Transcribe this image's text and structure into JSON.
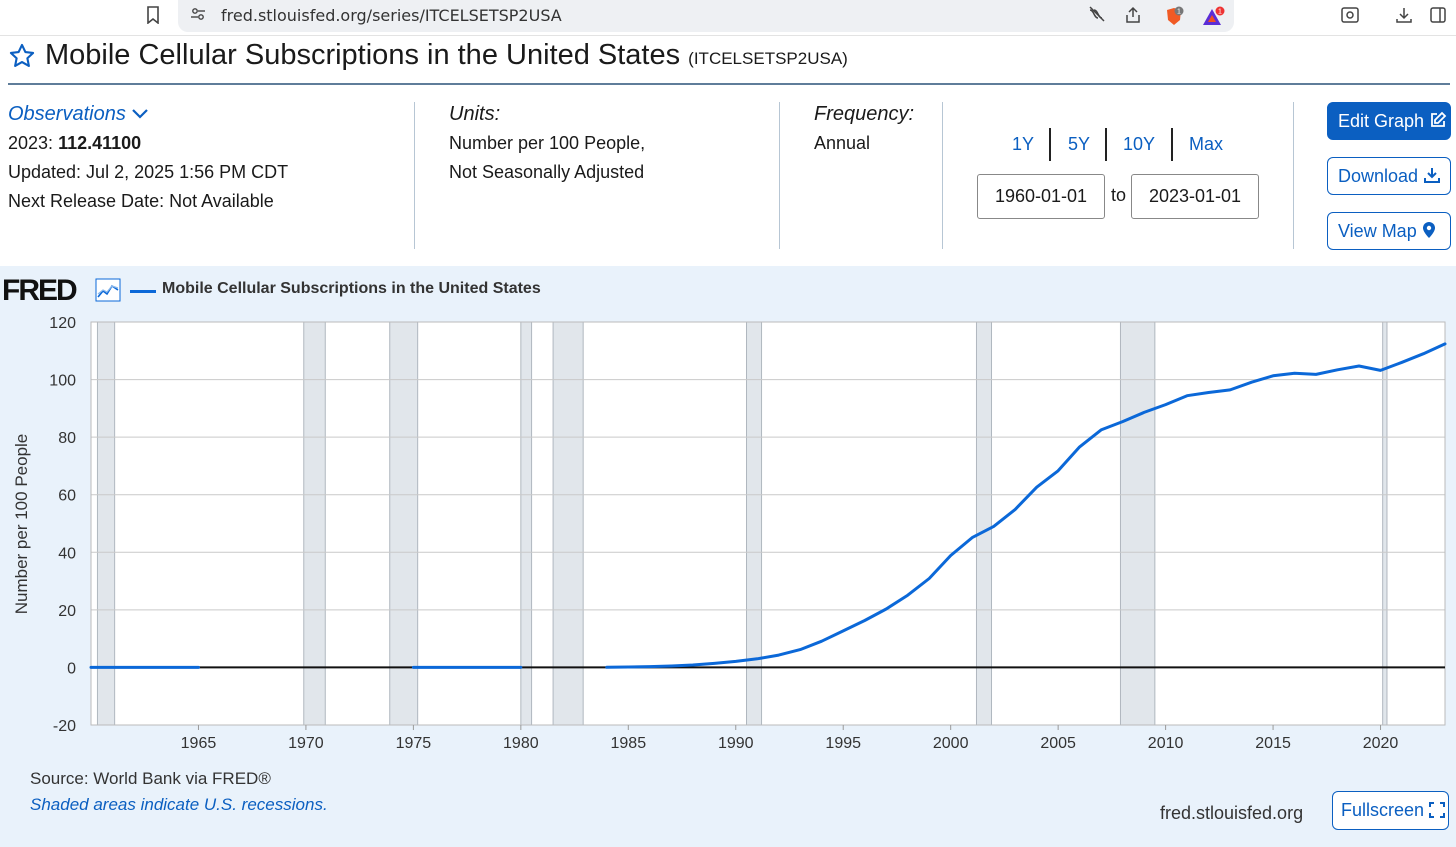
{
  "browser": {
    "url": "fred.stlouisfed.org/series/ITCELSETSP2USA"
  },
  "header": {
    "title": "Mobile Cellular Subscriptions in the United States",
    "series_id": "(ITCELSETSP2USA)"
  },
  "observations": {
    "label": "Observations",
    "latest_year": "2023:",
    "latest_value": "112.41100",
    "updated": "Updated: Jul 2, 2025 1:56 PM CDT",
    "next_release": "Next Release Date: Not Available"
  },
  "units": {
    "label": "Units:",
    "line1": "Number per 100 People,",
    "line2": "Not Seasonally Adjusted"
  },
  "frequency": {
    "label": "Frequency:",
    "value": "Annual"
  },
  "range": {
    "options": [
      "1Y",
      "5Y",
      "10Y",
      "Max"
    ],
    "start": "1960-01-01",
    "to": "to",
    "end": "2023-01-01"
  },
  "actions": {
    "edit_graph": "Edit Graph",
    "download": "Download",
    "view_map": "View Map",
    "fullscreen": "Fullscreen"
  },
  "graph_footer": {
    "logo": "FRED",
    "source": "Source: World Bank via FRED®",
    "shaded_note": "Shaded areas indicate U.S. recessions.",
    "site": "fred.stlouisfed.org"
  },
  "colors": {
    "accent": "#0b5fc1",
    "series_line": "#0b68d8",
    "recession_shade": "#e1e6eb",
    "graph_bg": "#e9f2fb"
  },
  "chart_data": {
    "type": "line",
    "title": "",
    "legend": "Mobile Cellular Subscriptions in the United States",
    "xlabel": "",
    "ylabel": "Number per 100 People",
    "xlim": [
      1960,
      2023
    ],
    "ylim": [
      -20,
      120
    ],
    "yticks": [
      -20,
      0,
      20,
      40,
      60,
      80,
      100,
      120
    ],
    "xticks": [
      1965,
      1970,
      1975,
      1980,
      1985,
      1990,
      1995,
      2000,
      2005,
      2010,
      2015,
      2020
    ],
    "grid": true,
    "recessions": [
      [
        1960.3,
        1961.1
      ],
      [
        1969.9,
        1970.9
      ],
      [
        1973.9,
        1975.2
      ],
      [
        1980.0,
        1980.5
      ],
      [
        1981.5,
        1982.9
      ],
      [
        1990.5,
        1991.2
      ],
      [
        2001.2,
        2001.9
      ],
      [
        2007.9,
        2009.5
      ],
      [
        2020.1,
        2020.3
      ]
    ],
    "series": [
      {
        "name": "Mobile Cellular Subscriptions in the United States",
        "segments": [
          {
            "x": [
              1960,
              1961,
              1962,
              1963,
              1964,
              1965
            ],
            "y": [
              0,
              0,
              0,
              0,
              0,
              0
            ]
          },
          {
            "x": [
              1975,
              1976,
              1977,
              1978,
              1979,
              1980
            ],
            "y": [
              0,
              0,
              0,
              0,
              0,
              0
            ]
          },
          {
            "x": [
              1984,
              1985,
              1986,
              1987,
              1988,
              1989,
              1990,
              1991,
              1992,
              1993,
              1994,
              1995,
              1996,
              1997,
              1998,
              1999,
              2000,
              2001,
              2002,
              2003,
              2004,
              2005,
              2006,
              2007,
              2008,
              2009,
              2010,
              2011,
              2012,
              2013,
              2014,
              2015,
              2016,
              2017,
              2018,
              2019,
              2020,
              2021,
              2022,
              2023
            ],
            "y": [
              0.04,
              0.14,
              0.28,
              0.49,
              0.84,
              1.4,
              2.1,
              3.0,
              4.3,
              6.2,
              9.1,
              12.7,
              16.3,
              20.3,
              25.1,
              30.9,
              38.9,
              45.1,
              49.0,
              54.9,
              62.6,
              68.3,
              76.6,
              82.5,
              85.4,
              88.6,
              91.3,
              94.4,
              95.5,
              96.4,
              99.1,
              101.3,
              102.2,
              101.8,
              103.4,
              104.7,
              103.2,
              106.0,
              109.0,
              112.4
            ]
          }
        ]
      }
    ]
  }
}
